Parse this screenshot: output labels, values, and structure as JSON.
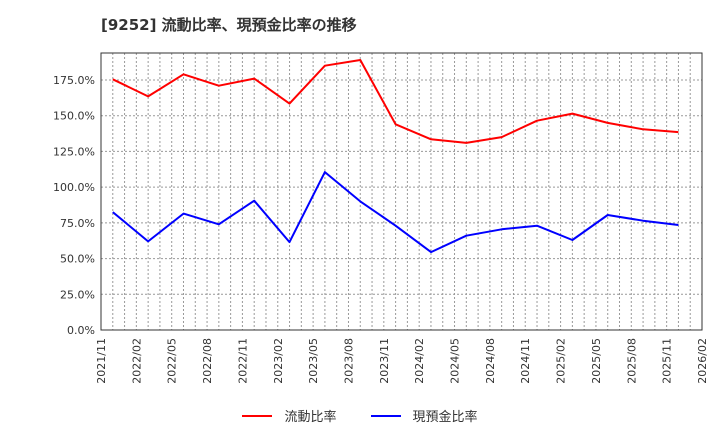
{
  "title": "[9252]  流動比率、現預金比率の推移",
  "colors": {
    "current_ratio": "#ff0000",
    "cash_ratio": "#0000ff",
    "grid": "#999999",
    "axis": "#333333"
  },
  "chart_data": {
    "type": "line",
    "title": "[9252]  流動比率、現預金比率の推移",
    "xlabel": "",
    "ylabel": "",
    "ylim": [
      0,
      193.9
    ],
    "y_ticks": [
      "0.0%",
      "25.0%",
      "50.0%",
      "75.0%",
      "100.0%",
      "125.0%",
      "150.0%",
      "175.0%"
    ],
    "x_ticks": [
      "2021/11",
      "2022/02",
      "2022/05",
      "2022/08",
      "2022/11",
      "2023/02",
      "2023/05",
      "2023/08",
      "2023/11",
      "2024/02",
      "2024/05",
      "2024/08",
      "2024/11",
      "2025/02",
      "2025/05",
      "2025/08",
      "2025/11",
      "2026/02"
    ],
    "grid": true,
    "legend_position": "bottom",
    "x": [
      "2021/12",
      "2022/03",
      "2022/06",
      "2022/09",
      "2022/12",
      "2023/03",
      "2023/06",
      "2023/09",
      "2023/12",
      "2024/03",
      "2024/06",
      "2024/09",
      "2024/12",
      "2025/03",
      "2025/06",
      "2025/09",
      "2025/12"
    ],
    "series": [
      {
        "name": "流動比率",
        "color": "#ff0000",
        "values": [
          175.5,
          163.5,
          179,
          171,
          176,
          158.5,
          185,
          189,
          144,
          133.5,
          131,
          135,
          146.5,
          151.5,
          145,
          140.5,
          138.5
        ]
      },
      {
        "name": "現預金比率",
        "color": "#0000ff",
        "values": [
          82.5,
          62,
          81.5,
          74,
          90.5,
          61.5,
          110.5,
          90,
          73,
          54.5,
          66,
          70.5,
          73,
          63,
          80.5,
          76.5,
          73.5
        ]
      }
    ]
  },
  "legend": [
    {
      "label": "流動比率",
      "color": "#ff0000"
    },
    {
      "label": "現預金比率",
      "color": "#0000ff"
    }
  ]
}
